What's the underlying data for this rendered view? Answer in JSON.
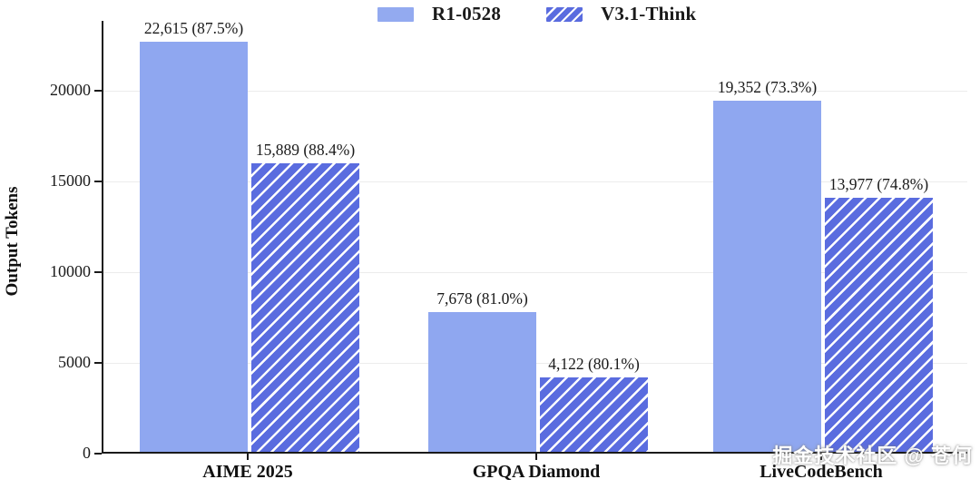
{
  "watermark": "掘金技术社区 @ 苍何",
  "chart_data": {
    "type": "bar",
    "title": "",
    "xlabel": "",
    "ylabel": "Output Tokens",
    "ylim": [
      0,
      23850
    ],
    "yticks": [
      0,
      5000,
      10000,
      15000,
      20000
    ],
    "ytick_labels": [
      "0",
      "5000",
      "10000",
      "15000",
      "20000"
    ],
    "grid": "horizontal-faint",
    "legend_position": "top-center",
    "categories": [
      "AIME 2025",
      "GPQA Diamond",
      "LiveCodeBench"
    ],
    "series": [
      {
        "name": "R1-0528",
        "pattern": "solid",
        "color": "#8fa7f0",
        "values": [
          22615,
          7678,
          19352
        ],
        "accuracy_pct": [
          87.5,
          81.0,
          73.3
        ],
        "bar_labels": [
          "22,615 (87.5%)",
          "7,678 (81.0%)",
          "19,352 (73.3%)"
        ]
      },
      {
        "name": "V3.1-Think",
        "pattern": "diagonal-hatch",
        "color": "#5a6cdf",
        "hatch_color": "#ffffff",
        "values": [
          15889,
          4122,
          13977
        ],
        "accuracy_pct": [
          88.4,
          80.1,
          74.8
        ],
        "bar_labels": [
          "15,889 (88.4%)",
          "4,122 (80.1%)",
          "13,977 (74.8%)"
        ]
      }
    ]
  }
}
